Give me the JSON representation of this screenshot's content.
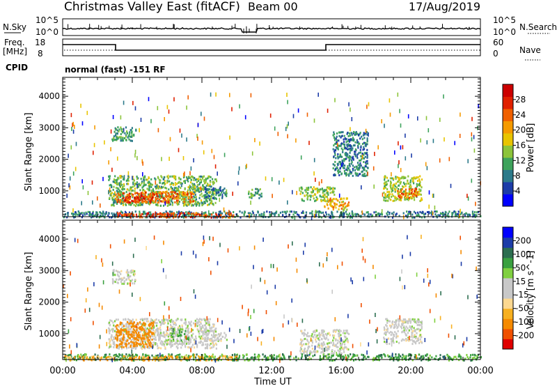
{
  "header": {
    "title": "Christmas Valley East (fitACF)",
    "beam": "Beam 00",
    "date": "17/Aug/2019"
  },
  "noise_panel": {
    "left_label": "N.Sky",
    "left_ticks": [
      "10^5",
      "10^0"
    ],
    "right_label": "N.Search",
    "right_ticks": [
      "10^5",
      "10^0"
    ]
  },
  "freq_panel": {
    "left_label": "Freq.",
    "left_unit": "[MHz]",
    "left_ticks": [
      "18",
      "8"
    ],
    "right_label": "Nave",
    "right_ticks": [
      "60",
      "0"
    ],
    "cpid_label": "CPID",
    "cpid_text": "normal (fast) -151 RF"
  },
  "chart_data": [
    {
      "type": "heatmap",
      "name": "power",
      "ylabel": "Slant Range [km]",
      "y_ticks": [
        1000,
        2000,
        3000,
        4000
      ],
      "ylim": [
        180,
        4600
      ],
      "x_ticks": [
        "00:00",
        "04:00",
        "08:00",
        "12:00",
        "16:00",
        "20:00",
        "00:00"
      ],
      "xlim_hours": [
        0,
        24
      ],
      "colorbar": {
        "label": "Power [dB]",
        "ticks": [
          "28",
          "24",
          "20",
          "16",
          "12",
          "8",
          "4"
        ],
        "colors": [
          "#0000ff",
          "#1c3ca8",
          "#2c7a8a",
          "#3ea35c",
          "#8cc43a",
          "#e8c400",
          "#f59a00",
          "#f06000",
          "#e02000",
          "#cc0000"
        ]
      },
      "regions": [
        {
          "t0": 2.6,
          "t1": 8.8,
          "r0": 550,
          "r1": 1500,
          "v": 14
        },
        {
          "t0": 3.0,
          "t1": 7.5,
          "r0": 650,
          "r1": 1000,
          "v": 24
        },
        {
          "t0": 3.5,
          "t1": 5.2,
          "r0": 650,
          "r1": 900,
          "v": 27
        },
        {
          "t0": 8.0,
          "t1": 9.4,
          "r0": 800,
          "r1": 1150,
          "v": 10
        },
        {
          "t0": 10.6,
          "t1": 11.4,
          "r0": 800,
          "r1": 1100,
          "v": 12
        },
        {
          "t0": 13.6,
          "t1": 15.6,
          "r0": 700,
          "r1": 1150,
          "v": 15
        },
        {
          "t0": 15.0,
          "t1": 16.4,
          "r0": 400,
          "r1": 800,
          "v": 20
        },
        {
          "t0": 18.4,
          "t1": 20.6,
          "r0": 700,
          "r1": 1500,
          "v": 16
        },
        {
          "t0": 19.2,
          "t1": 20.4,
          "r0": 800,
          "r1": 1100,
          "v": 23
        },
        {
          "t0": 0.0,
          "t1": 24.0,
          "r0": 180,
          "r1": 380,
          "v": 10
        },
        {
          "t0": 3.0,
          "t1": 9.8,
          "r0": 180,
          "r1": 330,
          "v": 26
        },
        {
          "t0": 2.8,
          "t1": 4.2,
          "r0": 2600,
          "r1": 3050,
          "v": 12
        },
        {
          "t0": 15.5,
          "t1": 17.5,
          "r0": 1500,
          "r1": 2900,
          "v": 10
        }
      ]
    },
    {
      "type": "heatmap",
      "name": "velocity",
      "ylabel": "Slant Range [km]",
      "y_ticks": [
        1000,
        2000,
        3000,
        4000
      ],
      "ylim": [
        180,
        4600
      ],
      "x_ticks": [
        "00:00",
        "04:00",
        "08:00",
        "12:00",
        "16:00",
        "20:00",
        "00:00"
      ],
      "xlim_hours": [
        0,
        24
      ],
      "xlabel": "Time UT",
      "colorbar": {
        "label": "Velocity [m s^-1]",
        "ticks": [
          "200",
          "100",
          "50",
          "15",
          "-15",
          "-50",
          "-100",
          "-200"
        ],
        "colors": [
          "#e00000",
          "#f05000",
          "#f58a00",
          "#f7b020",
          "#fcd890",
          "#c8c8c8",
          "#c8c8c8",
          "#80d040",
          "#3aa040",
          "#2c6e50",
          "#1c3ca8",
          "#0000ff"
        ]
      },
      "regions": [
        {
          "t0": 2.6,
          "t1": 8.8,
          "r0": 550,
          "r1": 1500,
          "v": 0
        },
        {
          "t0": 3.0,
          "t1": 5.2,
          "r0": 600,
          "r1": 1400,
          "v": -70
        },
        {
          "t0": 6.2,
          "t1": 7.2,
          "r0": 800,
          "r1": 1200,
          "v": 30
        },
        {
          "t0": 8.0,
          "t1": 9.4,
          "r0": 800,
          "r1": 1150,
          "v": 0
        },
        {
          "t0": 13.6,
          "t1": 16.4,
          "r0": 400,
          "r1": 1150,
          "v": 0
        },
        {
          "t0": 18.4,
          "t1": 20.6,
          "r0": 700,
          "r1": 1500,
          "v": 0
        },
        {
          "t0": 0.0,
          "t1": 24.0,
          "r0": 180,
          "r1": 380,
          "v": 40
        },
        {
          "t0": 0.0,
          "t1": 10.0,
          "r0": 180,
          "r1": 320,
          "v": -40
        },
        {
          "t0": 2.8,
          "t1": 4.2,
          "r0": 2600,
          "r1": 3050,
          "v": 0
        }
      ]
    }
  ]
}
